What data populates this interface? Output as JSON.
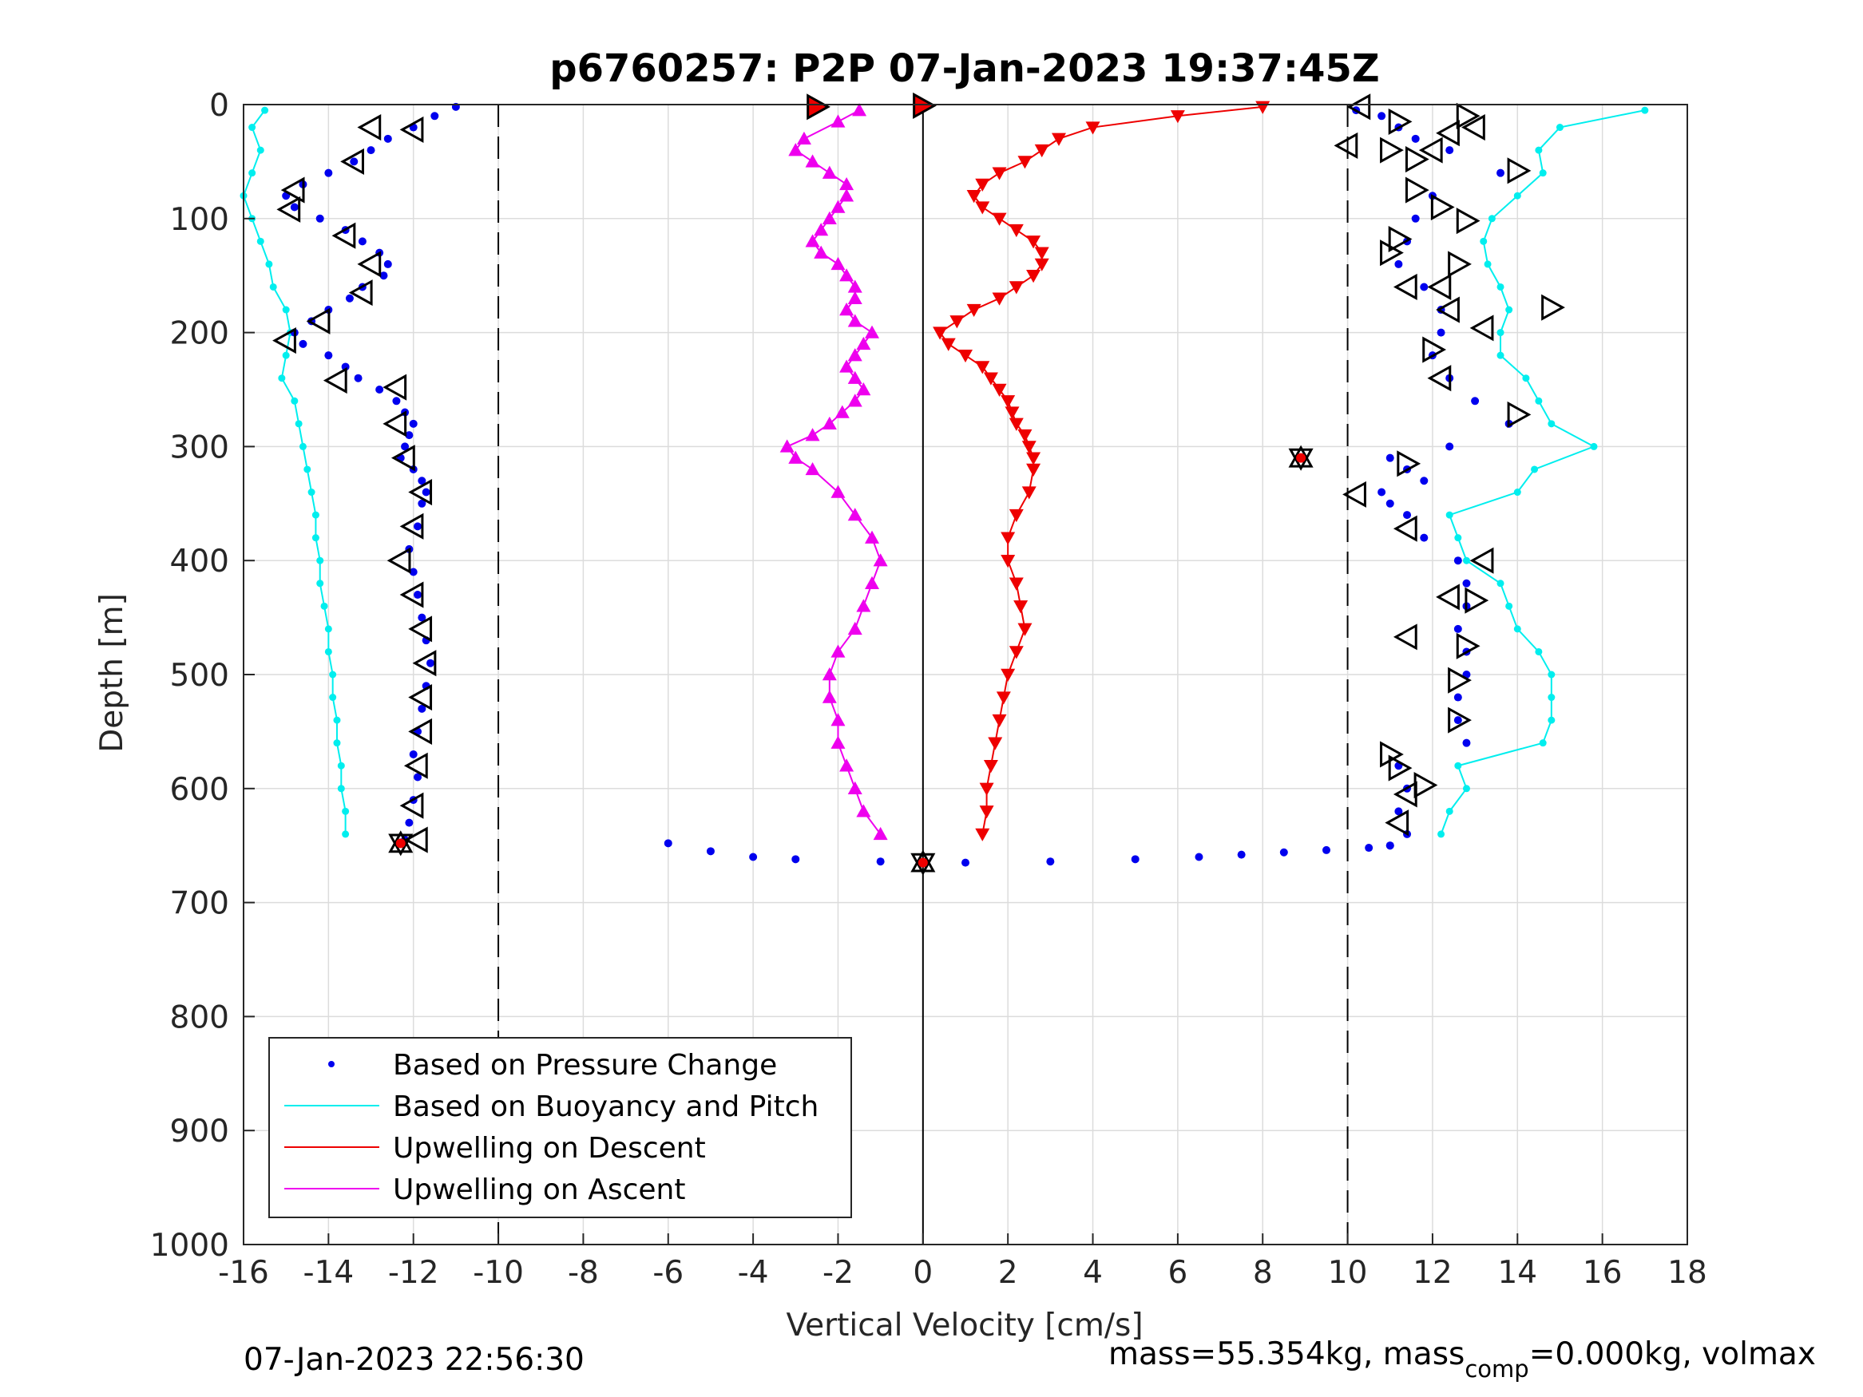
{
  "chart_data": {
    "type": "scatter",
    "title": "p6760257: P2P 07-Jan-2023 19:37:45Z",
    "xlabel": "Vertical Velocity [cm/s]",
    "ylabel": "Depth [m]",
    "xlim": [
      -16,
      18
    ],
    "ylim": [
      0,
      1000
    ],
    "y_reversed": true,
    "grid": true,
    "legend_position": "bottom-left",
    "x_ticks": [
      "-16",
      "-14",
      "-12",
      "-10",
      "-8",
      "-6",
      "-4",
      "-2",
      "0",
      "2",
      "4",
      "6",
      "8",
      "10",
      "12",
      "14",
      "16",
      "18"
    ],
    "y_ticks": [
      "0",
      "100",
      "200",
      "300",
      "400",
      "500",
      "600",
      "700",
      "800",
      "900",
      "1000"
    ],
    "reference_lines": [
      {
        "x": -10,
        "style": "dashed"
      },
      {
        "x": 0,
        "style": "solid"
      },
      {
        "x": 10,
        "style": "dashed"
      }
    ],
    "series": [
      {
        "name": "Based on Pressure Change",
        "color": "#0000ee",
        "marker": "dot",
        "profiles": [
          {
            "depth": [
              2,
              10,
              20,
              30,
              40,
              50,
              60,
              70,
              80,
              90,
              100,
              110,
              120,
              130,
              140,
              150,
              160,
              170,
              180,
              190,
              200,
              210,
              220,
              230,
              240,
              250,
              260,
              270,
              280,
              290,
              300,
              310,
              320,
              330,
              340,
              350,
              370,
              390,
              410,
              430,
              450,
              470,
              490,
              510,
              530,
              550,
              570,
              590,
              610,
              630,
              645
            ],
            "velocity": [
              -11.0,
              -11.5,
              -12.0,
              -12.6,
              -13.0,
              -13.4,
              -14.0,
              -14.6,
              -15.0,
              -14.8,
              -14.2,
              -13.6,
              -13.2,
              -12.8,
              -12.6,
              -12.7,
              -13.2,
              -13.5,
              -14.0,
              -14.4,
              -14.8,
              -14.6,
              -14.0,
              -13.6,
              -13.3,
              -12.8,
              -12.4,
              -12.2,
              -12.0,
              -12.1,
              -12.2,
              -12.3,
              -12.0,
              -11.8,
              -11.7,
              -11.8,
              -11.9,
              -12.1,
              -12.0,
              -11.9,
              -11.8,
              -11.7,
              -11.6,
              -11.7,
              -11.8,
              -11.9,
              -12.0,
              -11.9,
              -12.0,
              -12.1,
              -12.2
            ]
          },
          {
            "depth": [
              5,
              10,
              20,
              30,
              40,
              60,
              80,
              100,
              120,
              140,
              160,
              180,
              200,
              220,
              240,
              260,
              280,
              300,
              310,
              320,
              330,
              340,
              350,
              360,
              380,
              400,
              420,
              440,
              460,
              480,
              500,
              520,
              540,
              560,
              580,
              600,
              620,
              640,
              650
            ],
            "velocity": [
              10.2,
              10.8,
              11.2,
              11.6,
              12.4,
              13.6,
              12.0,
              11.6,
              11.4,
              11.2,
              11.8,
              12.2,
              12.2,
              12.0,
              12.4,
              13.0,
              13.8,
              12.4,
              11.0,
              11.4,
              11.8,
              10.8,
              11.0,
              11.4,
              11.8,
              12.6,
              12.8,
              12.8,
              12.6,
              12.8,
              12.8,
              12.6,
              12.6,
              12.8,
              11.2,
              11.4,
              11.2,
              11.4,
              11.0
            ]
          },
          {
            "depth": [
              648,
              655,
              660,
              662,
              664,
              665,
              664,
              662,
              660,
              658,
              656,
              654,
              652,
              650
            ],
            "velocity": [
              -6,
              -5,
              -4,
              -3,
              -1,
              1,
              3,
              5,
              6.5,
              7.5,
              8.5,
              9.5,
              10.5,
              11
            ]
          }
        ]
      },
      {
        "name": "Based on Buoyancy and Pitch",
        "color": "#00eeee",
        "marker": "line-dot",
        "profiles": [
          {
            "depth": [
              5,
              20,
              40,
              60,
              80,
              100,
              120,
              140,
              160,
              180,
              200,
              220,
              240,
              260,
              280,
              300,
              320,
              340,
              360,
              380,
              400,
              420,
              440,
              460,
              480,
              500,
              520,
              540,
              560,
              580,
              600,
              620,
              640
            ],
            "velocity": [
              -15.5,
              -15.8,
              -15.6,
              -15.8,
              -16.0,
              -15.8,
              -15.6,
              -15.4,
              -15.3,
              -15.0,
              -14.9,
              -15.0,
              -15.1,
              -14.8,
              -14.7,
              -14.6,
              -14.5,
              -14.4,
              -14.3,
              -14.3,
              -14.2,
              -14.2,
              -14.1,
              -14.0,
              -14.0,
              -13.9,
              -13.9,
              -13.8,
              -13.8,
              -13.7,
              -13.7,
              -13.6,
              -13.6
            ]
          },
          {
            "depth": [
              5,
              20,
              40,
              60,
              80,
              100,
              120,
              140,
              160,
              180,
              200,
              220,
              240,
              260,
              280,
              300,
              320,
              340,
              360,
              380,
              400,
              420,
              440,
              460,
              480,
              500,
              520,
              540,
              560,
              580,
              600,
              620,
              640
            ],
            "velocity": [
              17.0,
              15.0,
              14.5,
              14.6,
              14.0,
              13.4,
              13.2,
              13.3,
              13.6,
              13.8,
              13.6,
              13.6,
              14.2,
              14.5,
              14.8,
              15.8,
              14.4,
              14.0,
              12.4,
              12.6,
              12.8,
              13.6,
              13.8,
              14.0,
              14.5,
              14.8,
              14.8,
              14.8,
              14.6,
              12.6,
              12.8,
              12.4,
              12.2
            ]
          }
        ]
      },
      {
        "name": "Upwelling on Descent",
        "color": "#ee0000",
        "marker": "triangle-down",
        "depth": [
          2,
          10,
          20,
          30,
          40,
          50,
          60,
          70,
          80,
          90,
          100,
          110,
          120,
          130,
          140,
          150,
          160,
          170,
          180,
          190,
          200,
          210,
          220,
          230,
          240,
          250,
          260,
          270,
          280,
          290,
          300,
          310,
          320,
          340,
          360,
          380,
          400,
          420,
          440,
          460,
          480,
          500,
          520,
          540,
          560,
          580,
          600,
          620,
          640
        ],
        "velocity": [
          8.0,
          6.0,
          4.0,
          3.2,
          2.8,
          2.4,
          1.8,
          1.4,
          1.2,
          1.4,
          1.8,
          2.2,
          2.6,
          2.8,
          2.8,
          2.6,
          2.2,
          1.8,
          1.2,
          0.8,
          0.4,
          0.6,
          1.0,
          1.4,
          1.6,
          1.8,
          2.0,
          2.1,
          2.2,
          2.4,
          2.5,
          2.6,
          2.6,
          2.5,
          2.2,
          2.0,
          2.0,
          2.2,
          2.3,
          2.4,
          2.2,
          2.0,
          1.9,
          1.8,
          1.7,
          1.6,
          1.5,
          1.5,
          1.4
        ]
      },
      {
        "name": "Upwelling on Ascent",
        "color": "#ee00ee",
        "marker": "triangle-up",
        "depth": [
          5,
          15,
          30,
          40,
          50,
          60,
          70,
          80,
          90,
          100,
          110,
          120,
          130,
          140,
          150,
          160,
          170,
          180,
          190,
          200,
          210,
          220,
          230,
          240,
          250,
          260,
          270,
          280,
          290,
          300,
          310,
          320,
          340,
          360,
          380,
          400,
          420,
          440,
          460,
          480,
          500,
          520,
          540,
          560,
          580,
          600,
          620,
          640
        ],
        "velocity": [
          -1.5,
          -2.0,
          -2.8,
          -3.0,
          -2.6,
          -2.2,
          -1.8,
          -1.8,
          -2.0,
          -2.2,
          -2.4,
          -2.6,
          -2.4,
          -2.0,
          -1.8,
          -1.6,
          -1.6,
          -1.8,
          -1.6,
          -1.2,
          -1.4,
          -1.6,
          -1.8,
          -1.6,
          -1.4,
          -1.6,
          -1.9,
          -2.2,
          -2.6,
          -3.2,
          -3.0,
          -2.6,
          -2.0,
          -1.6,
          -1.2,
          -1.0,
          -1.2,
          -1.4,
          -1.6,
          -2.0,
          -2.2,
          -2.2,
          -2.0,
          -2.0,
          -1.8,
          -1.6,
          -1.4,
          -1.0
        ]
      }
    ],
    "event_markers": [
      {
        "velocity": -2.5,
        "depth": 2,
        "shape": "right",
        "fill": "#ee0000"
      },
      {
        "velocity": 0.0,
        "depth": 1,
        "shape": "right",
        "fill": "#ee0000"
      },
      {
        "velocity": -12.3,
        "depth": 648,
        "shape": "star",
        "fill": "#ee0000"
      },
      {
        "velocity": 0.0,
        "depth": 665,
        "shape": "star",
        "fill": "#ee0000"
      },
      {
        "velocity": 8.9,
        "depth": 310,
        "shape": "star",
        "fill": "#ee0000"
      },
      {
        "velocity": -13.0,
        "depth": 20,
        "shape": "left",
        "fill": "none"
      },
      {
        "velocity": -12.0,
        "depth": 22,
        "shape": "left",
        "fill": "none"
      },
      {
        "velocity": -13.4,
        "depth": 50,
        "shape": "left",
        "fill": "none"
      },
      {
        "velocity": -14.8,
        "depth": 75,
        "shape": "left",
        "fill": "none"
      },
      {
        "velocity": -14.9,
        "depth": 92,
        "shape": "left",
        "fill": "none"
      },
      {
        "velocity": -13.6,
        "depth": 115,
        "shape": "left",
        "fill": "none"
      },
      {
        "velocity": -13.0,
        "depth": 140,
        "shape": "left",
        "fill": "none"
      },
      {
        "velocity": -13.2,
        "depth": 165,
        "shape": "left",
        "fill": "none"
      },
      {
        "velocity": -14.2,
        "depth": 190,
        "shape": "left",
        "fill": "none"
      },
      {
        "velocity": -15.0,
        "depth": 207,
        "shape": "left",
        "fill": "none"
      },
      {
        "velocity": -13.8,
        "depth": 242,
        "shape": "left",
        "fill": "none"
      },
      {
        "velocity": -12.4,
        "depth": 248,
        "shape": "left",
        "fill": "none"
      },
      {
        "velocity": -12.4,
        "depth": 280,
        "shape": "left",
        "fill": "none"
      },
      {
        "velocity": -12.2,
        "depth": 310,
        "shape": "left",
        "fill": "none"
      },
      {
        "velocity": -11.8,
        "depth": 340,
        "shape": "left",
        "fill": "none"
      },
      {
        "velocity": -12.0,
        "depth": 370,
        "shape": "left",
        "fill": "none"
      },
      {
        "velocity": -12.3,
        "depth": 400,
        "shape": "left",
        "fill": "none"
      },
      {
        "velocity": -12.0,
        "depth": 430,
        "shape": "left",
        "fill": "none"
      },
      {
        "velocity": -11.8,
        "depth": 460,
        "shape": "left",
        "fill": "none"
      },
      {
        "velocity": -11.7,
        "depth": 490,
        "shape": "left",
        "fill": "none"
      },
      {
        "velocity": -11.8,
        "depth": 520,
        "shape": "left",
        "fill": "none"
      },
      {
        "velocity": -11.8,
        "depth": 550,
        "shape": "left",
        "fill": "none"
      },
      {
        "velocity": -11.9,
        "depth": 580,
        "shape": "left",
        "fill": "none"
      },
      {
        "velocity": -12.0,
        "depth": 615,
        "shape": "left",
        "fill": "none"
      },
      {
        "velocity": -11.9,
        "depth": 645,
        "shape": "left",
        "fill": "none"
      },
      {
        "velocity": 10.3,
        "depth": 2,
        "shape": "left",
        "fill": "none"
      },
      {
        "velocity": 11.2,
        "depth": 15,
        "shape": "right",
        "fill": "none"
      },
      {
        "velocity": 12.8,
        "depth": 10,
        "shape": "right",
        "fill": "none"
      },
      {
        "velocity": 13.0,
        "depth": 20,
        "shape": "left",
        "fill": "none"
      },
      {
        "velocity": 12.4,
        "depth": 25,
        "shape": "left",
        "fill": "none"
      },
      {
        "velocity": 10.0,
        "depth": 36,
        "shape": "left",
        "fill": "none"
      },
      {
        "velocity": 11.0,
        "depth": 40,
        "shape": "right",
        "fill": "none"
      },
      {
        "velocity": 11.6,
        "depth": 48,
        "shape": "right",
        "fill": "none"
      },
      {
        "velocity": 12.0,
        "depth": 40,
        "shape": "left",
        "fill": "none"
      },
      {
        "velocity": 14.0,
        "depth": 58,
        "shape": "right",
        "fill": "none"
      },
      {
        "velocity": 11.6,
        "depth": 75,
        "shape": "right",
        "fill": "none"
      },
      {
        "velocity": 12.2,
        "depth": 90,
        "shape": "right",
        "fill": "none"
      },
      {
        "velocity": 12.8,
        "depth": 102,
        "shape": "right",
        "fill": "none"
      },
      {
        "velocity": 11.2,
        "depth": 118,
        "shape": "right",
        "fill": "none"
      },
      {
        "velocity": 11.0,
        "depth": 130,
        "shape": "right",
        "fill": "none"
      },
      {
        "velocity": 12.6,
        "depth": 140,
        "shape": "right",
        "fill": "none"
      },
      {
        "velocity": 11.4,
        "depth": 160,
        "shape": "left",
        "fill": "none"
      },
      {
        "velocity": 12.2,
        "depth": 160,
        "shape": "left",
        "fill": "none"
      },
      {
        "velocity": 12.4,
        "depth": 180,
        "shape": "left",
        "fill": "none"
      },
      {
        "velocity": 14.8,
        "depth": 178,
        "shape": "right",
        "fill": "none"
      },
      {
        "velocity": 13.2,
        "depth": 196,
        "shape": "left",
        "fill": "none"
      },
      {
        "velocity": 12.0,
        "depth": 215,
        "shape": "right",
        "fill": "none"
      },
      {
        "velocity": 12.2,
        "depth": 240,
        "shape": "left",
        "fill": "none"
      },
      {
        "velocity": 14.0,
        "depth": 272,
        "shape": "right",
        "fill": "none"
      },
      {
        "velocity": 11.4,
        "depth": 315,
        "shape": "right",
        "fill": "none"
      },
      {
        "velocity": 10.2,
        "depth": 342,
        "shape": "left",
        "fill": "none"
      },
      {
        "velocity": 11.4,
        "depth": 372,
        "shape": "left",
        "fill": "none"
      },
      {
        "velocity": 13.2,
        "depth": 400,
        "shape": "left",
        "fill": "none"
      },
      {
        "velocity": 12.4,
        "depth": 432,
        "shape": "left",
        "fill": "none"
      },
      {
        "velocity": 13.0,
        "depth": 435,
        "shape": "right",
        "fill": "none"
      },
      {
        "velocity": 11.4,
        "depth": 467,
        "shape": "left",
        "fill": "none"
      },
      {
        "velocity": 12.8,
        "depth": 475,
        "shape": "right",
        "fill": "none"
      },
      {
        "velocity": 12.6,
        "depth": 505,
        "shape": "right",
        "fill": "none"
      },
      {
        "velocity": 12.6,
        "depth": 540,
        "shape": "right",
        "fill": "none"
      },
      {
        "velocity": 11.0,
        "depth": 570,
        "shape": "right",
        "fill": "none"
      },
      {
        "velocity": 11.2,
        "depth": 582,
        "shape": "right",
        "fill": "none"
      },
      {
        "velocity": 11.8,
        "depth": 597,
        "shape": "right",
        "fill": "none"
      },
      {
        "velocity": 11.4,
        "depth": 605,
        "shape": "left",
        "fill": "none"
      },
      {
        "velocity": 11.2,
        "depth": 630,
        "shape": "left",
        "fill": "none"
      }
    ],
    "legend": [
      "Based on Pressure Change",
      "Based on Buoyancy and Pitch",
      "Upwelling on Descent",
      "Upwelling on Ascent"
    ]
  },
  "footer": {
    "timestamp": "07-Jan-2023 22:56:30",
    "mass_prefix": "mass=55.354kg, mass",
    "mass_subscript": "comp",
    "mass_suffix": "=0.000kg, volmax"
  }
}
